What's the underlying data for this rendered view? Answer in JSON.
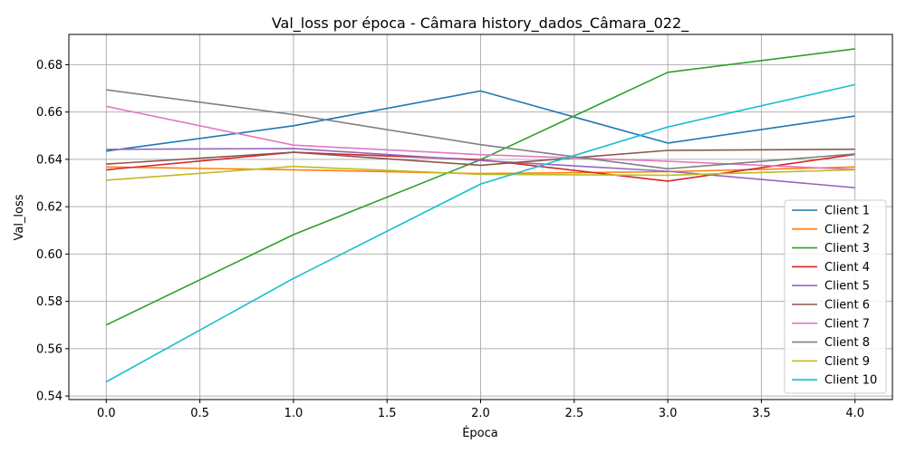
{
  "chart_data": {
    "type": "line",
    "title": "Val_loss por época - Câmara history_dados_Câmara_022_",
    "xlabel": "Época",
    "ylabel": "Val_loss",
    "x": [
      0,
      1,
      2,
      3,
      4
    ],
    "xlim": [
      -0.2,
      4.2
    ],
    "ylim": [
      0.5385,
      0.6928
    ],
    "xticks": [
      "0.0",
      "0.5",
      "1.0",
      "1.5",
      "2.0",
      "2.5",
      "3.0",
      "3.5",
      "4.0"
    ],
    "yticks": [
      "0.54",
      "0.56",
      "0.58",
      "0.60",
      "0.62",
      "0.64",
      "0.66",
      "0.68"
    ],
    "grid": true,
    "legend_position": "lower-right",
    "series": [
      {
        "name": "Client 1",
        "color": "#1f77b4",
        "values": [
          0.6435,
          0.6542,
          0.6689,
          0.6469,
          0.6583
        ]
      },
      {
        "name": "Client 2",
        "color": "#ff7f0e",
        "values": [
          0.6368,
          0.6356,
          0.634,
          0.6348,
          0.6368
        ]
      },
      {
        "name": "Client 3",
        "color": "#2ca02c",
        "values": [
          0.57,
          0.6082,
          0.6399,
          0.6768,
          0.6867
        ]
      },
      {
        "name": "Client 4",
        "color": "#d62728",
        "values": [
          0.6356,
          0.643,
          0.6399,
          0.6308,
          0.6421
        ]
      },
      {
        "name": "Client 5",
        "color": "#9467bd",
        "values": [
          0.6442,
          0.6446,
          0.6395,
          0.635,
          0.628
        ]
      },
      {
        "name": "Client 6",
        "color": "#8c564b",
        "values": [
          0.638,
          0.643,
          0.6375,
          0.6438,
          0.6443
        ]
      },
      {
        "name": "Client 7",
        "color": "#e377c2",
        "values": [
          0.6624,
          0.646,
          0.642,
          0.6392,
          0.6357
        ]
      },
      {
        "name": "Client 8",
        "color": "#7f7f7f",
        "values": [
          0.6694,
          0.6589,
          0.6462,
          0.636,
          0.6423
        ]
      },
      {
        "name": "Client 9",
        "color": "#bcbd22",
        "values": [
          0.6312,
          0.637,
          0.6337,
          0.6333,
          0.6356
        ]
      },
      {
        "name": "Client 10",
        "color": "#17becf",
        "values": [
          0.546,
          0.5897,
          0.6296,
          0.6537,
          0.6716
        ]
      }
    ]
  }
}
